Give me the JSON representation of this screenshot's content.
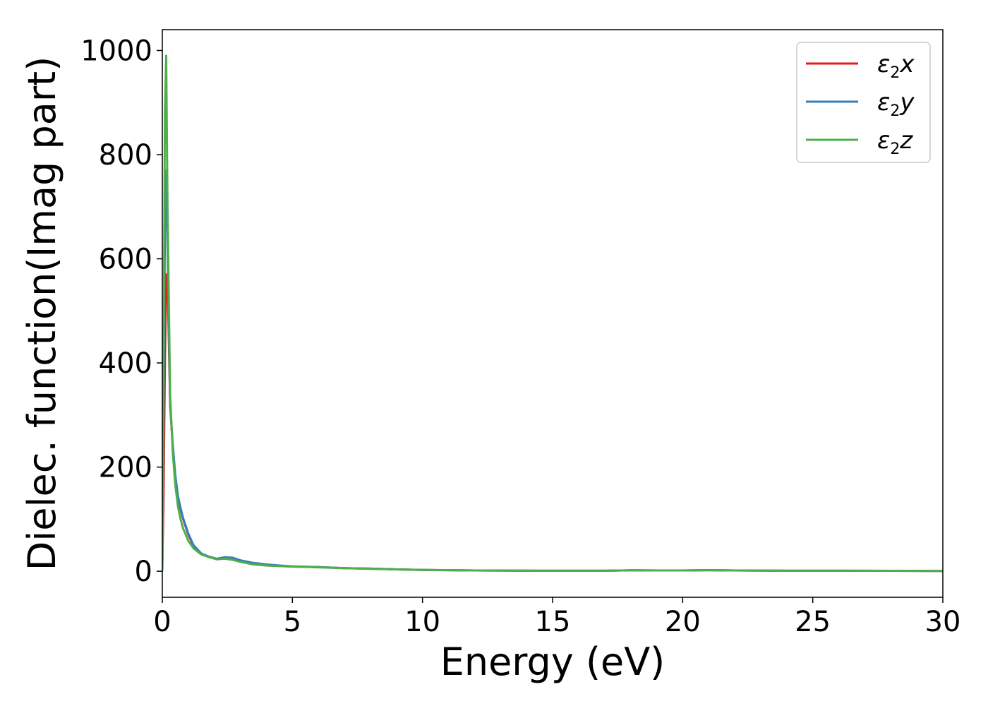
{
  "chart_data": {
    "type": "line",
    "xlabel": "Energy (eV)",
    "ylabel": "Dielec. function(Imag part)",
    "xlim": [
      0,
      30
    ],
    "ylim": [
      -50,
      1040
    ],
    "xticks": [
      "0",
      "5",
      "10",
      "15",
      "20",
      "25",
      "30"
    ],
    "yticks": [
      "0",
      "200",
      "400",
      "600",
      "800",
      "1000"
    ],
    "legend_position": "top-right",
    "grid": false,
    "series": [
      {
        "name": "ε2x",
        "legend_base": "ε",
        "legend_sub": "2",
        "legend_suffix": "x",
        "color": "#e41a1c",
        "x": [
          0,
          0.05,
          0.1,
          0.15,
          0.2,
          0.3,
          0.4,
          0.5,
          0.6,
          0.7,
          0.8,
          1.0,
          1.2,
          1.5,
          1.8,
          2.1,
          2.4,
          2.7,
          3.0,
          3.5,
          4.0,
          4.5,
          5.0,
          6.0,
          7.0,
          8.0,
          9.0,
          10.0,
          12.0,
          15.0,
          17.0,
          18.0,
          19.0,
          20.0,
          21.0,
          22.0,
          24.0,
          26.0,
          28.0,
          30.0
        ],
        "y": [
          0,
          150,
          400,
          570,
          560,
          320,
          240,
          180,
          140,
          120,
          100,
          70,
          48,
          33,
          27,
          23,
          25,
          24,
          20,
          14,
          11,
          10,
          9,
          8,
          6,
          5,
          3.5,
          2.5,
          1.5,
          1,
          1,
          1.8,
          1.5,
          1.5,
          2,
          1.5,
          1,
          1,
          0.8,
          0.5
        ]
      },
      {
        "name": "ε2y",
        "legend_base": "ε",
        "legend_sub": "2",
        "legend_suffix": "y",
        "color": "#377eb8",
        "x": [
          0,
          0.05,
          0.1,
          0.15,
          0.2,
          0.3,
          0.4,
          0.5,
          0.6,
          0.7,
          0.8,
          1.0,
          1.2,
          1.5,
          1.8,
          2.1,
          2.4,
          2.7,
          3.0,
          3.5,
          4.0,
          4.5,
          5.0,
          6.0,
          7.0,
          8.0,
          9.0,
          10.0,
          12.0,
          15.0,
          17.0,
          18.0,
          19.0,
          20.0,
          21.0,
          22.0,
          24.0,
          26.0,
          28.0,
          30.0
        ],
        "y": [
          0,
          300,
          650,
          770,
          620,
          320,
          245,
          185,
          145,
          122,
          102,
          72,
          50,
          34,
          28,
          24,
          27,
          26,
          21,
          16,
          13,
          11,
          9.5,
          8,
          6,
          5,
          3.5,
          2.5,
          1.5,
          1,
          1,
          1.8,
          1.5,
          1.5,
          2,
          1.5,
          1,
          1,
          0.8,
          0.5
        ]
      },
      {
        "name": "ε2z",
        "legend_base": "ε",
        "legend_sub": "2",
        "legend_suffix": "z",
        "color": "#4daf4a",
        "x": [
          0,
          0.05,
          0.1,
          0.15,
          0.2,
          0.3,
          0.4,
          0.5,
          0.6,
          0.7,
          0.8,
          1.0,
          1.2,
          1.5,
          1.8,
          2.1,
          2.4,
          2.7,
          3.0,
          3.5,
          4.0,
          4.5,
          5.0,
          6.0,
          7.0,
          8.0,
          9.0,
          10.0,
          12.0,
          15.0,
          17.0,
          18.0,
          19.0,
          20.0,
          21.0,
          22.0,
          24.0,
          26.0,
          28.0,
          30.0
        ],
        "y": [
          0,
          400,
          880,
          990,
          700,
          340,
          230,
          165,
          125,
          100,
          82,
          58,
          44,
          32,
          27,
          23,
          24,
          22,
          18,
          13,
          11,
          10,
          9,
          7.5,
          6,
          4.5,
          3.5,
          2.5,
          1.5,
          1,
          1,
          1.8,
          1.5,
          1.5,
          2,
          1.5,
          1,
          1,
          0.8,
          0.5
        ]
      }
    ]
  }
}
